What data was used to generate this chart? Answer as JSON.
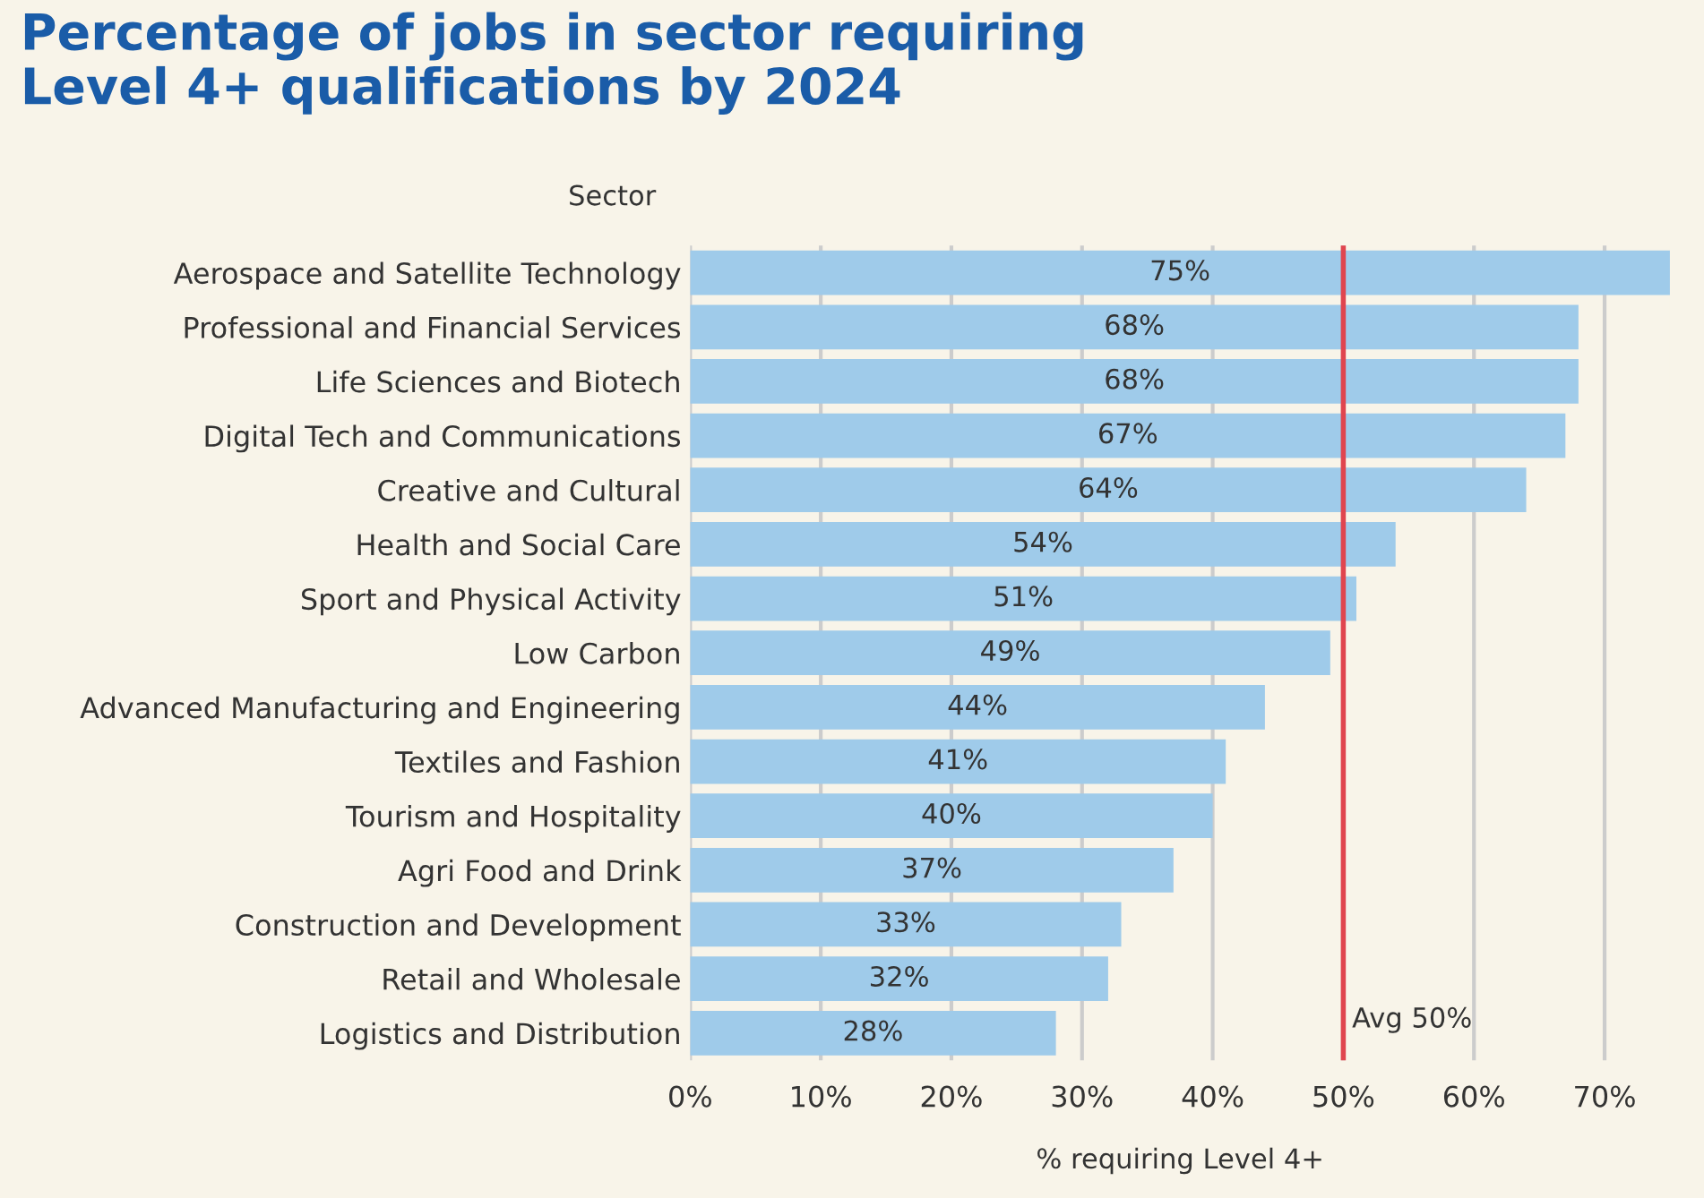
{
  "chart_data": {
    "type": "bar",
    "orientation": "horizontal",
    "title": "Percentage of jobs in sector requiring\nLevel 4+ qualifications by 2024",
    "ylabel": "Sector",
    "xlabel": "% requiring Level 4+",
    "categories": [
      "Aerospace and Satellite Technology",
      "Professional and Financial Services",
      "Life Sciences and Biotech",
      "Digital Tech and Communications",
      "Creative and Cultural",
      "Health and Social Care",
      "Sport and Physical Activity",
      "Low Carbon",
      "Advanced Manufacturing and Engineering",
      "Textiles and Fashion",
      "Tourism and Hospitality",
      "Agri Food and Drink",
      "Construction and Development",
      "Retail and Wholesale",
      "Logistics and Distribution"
    ],
    "values": [
      75,
      68,
      68,
      67,
      64,
      54,
      51,
      49,
      44,
      41,
      40,
      37,
      33,
      32,
      28
    ],
    "value_labels": [
      "75%",
      "68%",
      "68%",
      "67%",
      "64%",
      "54%",
      "51%",
      "49%",
      "44%",
      "41%",
      "40%",
      "37%",
      "33%",
      "32%",
      "28%"
    ],
    "color": "#9fcbea",
    "xlim": [
      0,
      75
    ],
    "xticks": [
      {
        "value": 0,
        "label": "0%"
      },
      {
        "value": 10,
        "label": "10%"
      },
      {
        "value": 20,
        "label": "20%"
      },
      {
        "value": 30,
        "label": "30%"
      },
      {
        "value": 40,
        "label": "40%"
      },
      {
        "value": 50,
        "label": "50%"
      },
      {
        "value": 60,
        "label": "60%"
      },
      {
        "value": 70,
        "label": "70%"
      }
    ],
    "grid": "x",
    "legend": false,
    "ref_lines": [
      {
        "axis": "x",
        "value": 50,
        "label": "Avg 50%",
        "color": "#e0454f"
      }
    ]
  }
}
